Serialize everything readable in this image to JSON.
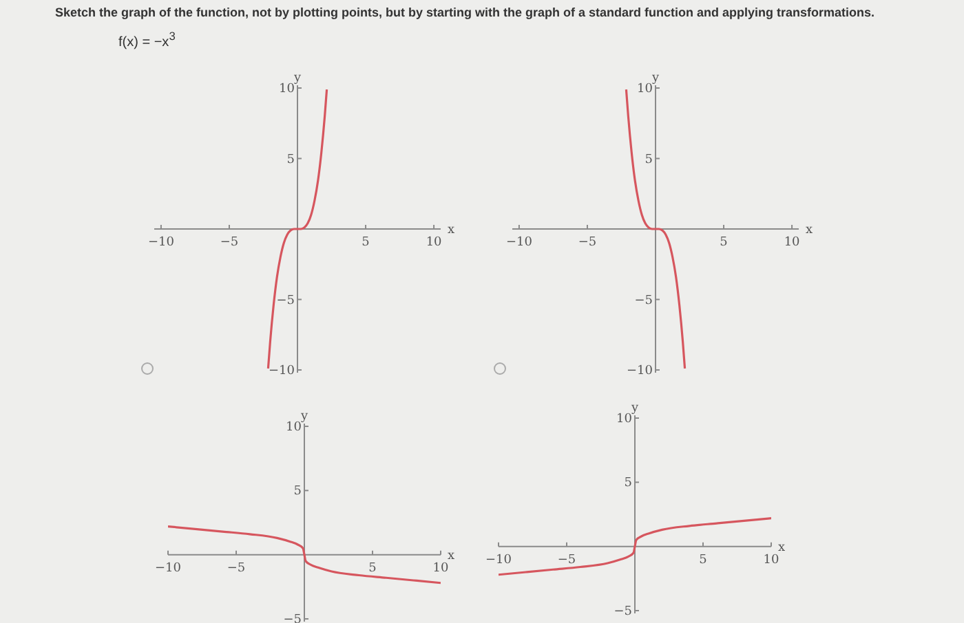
{
  "chart_data": [
    {
      "type": "line",
      "title": "Sketch the graph of the function, not by plotting points, but by starting with the graph of a standard function and applying transformations.",
      "subtitle": "f(x) = −x$^{3}$",
      "xlabel": "x",
      "ylabel": "y",
      "xlim": [
        -10.5,
        10.5
      ],
      "ylim": [
        -10,
        10
      ],
      "xticks": [
        -10,
        -5,
        5,
        10
      ],
      "yticks": [
        -10,
        -5,
        5,
        10
      ],
      "series": [
        {
          "color": "#d6565e",
          "x": [
            -2.15,
            -2,
            -1.75,
            -1.5,
            -1.25,
            -1,
            -0.75,
            -0.5,
            -0.25,
            0,
            0.25,
            0.5,
            0.75,
            1,
            1.25,
            1.5,
            1.75,
            2,
            2.15
          ],
          "values": [
            -9.9,
            -8,
            -5.4,
            -3.4,
            -2,
            -1,
            -0.4,
            -0.1,
            0,
            0,
            0,
            0.1,
            0.4,
            1,
            2,
            3.4,
            5.4,
            8,
            9.9
          ]
        }
      ]
    },
    {
      "type": "line",
      "xlabel": "x",
      "ylabel": "y",
      "xlim": [
        -10.5,
        10.5
      ],
      "ylim": [
        -10,
        10
      ],
      "xticks": [
        -10,
        -5,
        5,
        10
      ],
      "yticks": [
        -10,
        -5,
        5,
        10
      ],
      "series": [
        {
          "color": "#d6565e",
          "x": [
            -2.15,
            -2,
            -1.75,
            -1.5,
            -1.25,
            -1,
            -0.75,
            -0.5,
            -0.25,
            0,
            0.25,
            0.5,
            0.75,
            1,
            1.25,
            1.5,
            1.75,
            2,
            2.15
          ],
          "values": [
            9.9,
            8,
            5.4,
            3.4,
            2,
            1,
            0.4,
            0.1,
            0,
            0,
            0,
            -0.1,
            -0.4,
            -1,
            -2,
            -3.4,
            -5.4,
            -8,
            -9.9
          ]
        }
      ]
    },
    {
      "type": "line",
      "xlabel": "x",
      "ylabel": "y",
      "xlim": [
        -10,
        10
      ],
      "ylim": [
        -5,
        10
      ],
      "xticks": [
        -10,
        -5,
        5,
        10
      ],
      "yticks": [
        -5,
        5,
        10
      ],
      "series": [
        {
          "color": "#d6565e",
          "x": [
            -10,
            -8,
            -6,
            -4,
            -2,
            -1,
            -0.5,
            -0.1,
            0,
            0.1,
            0.5,
            1,
            2,
            4,
            6,
            8,
            10
          ],
          "values": [
            2.2,
            2,
            1.8,
            1.6,
            1.3,
            1,
            0.8,
            0.5,
            0,
            -0.5,
            -0.8,
            -1,
            -1.3,
            -1.6,
            -1.8,
            -2,
            -2.2
          ]
        }
      ]
    },
    {
      "type": "line",
      "xlabel": "x",
      "ylabel": "y",
      "xlim": [
        -10,
        10
      ],
      "ylim": [
        -5,
        10
      ],
      "xticks": [
        -10,
        -5,
        5,
        10
      ],
      "yticks": [
        -5,
        5,
        10
      ],
      "series": [
        {
          "color": "#d6565e",
          "x": [
            -10,
            -8,
            -6,
            -4,
            -2,
            -1,
            -0.5,
            -0.1,
            0,
            0.1,
            0.5,
            1,
            2,
            4,
            6,
            8,
            10
          ],
          "values": [
            -2.2,
            -2,
            -1.8,
            -1.6,
            -1.3,
            -1,
            -0.8,
            -0.5,
            0,
            0.5,
            0.8,
            1,
            1.3,
            1.6,
            1.8,
            2,
            2.2
          ]
        }
      ]
    }
  ]
}
